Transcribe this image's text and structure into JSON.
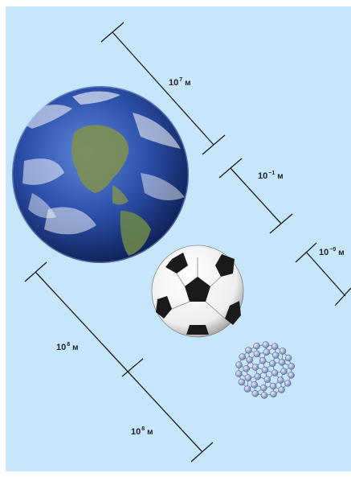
{
  "scale_labels": [
    {
      "base": "10",
      "exp": "7",
      "unit": "м"
    },
    {
      "base": "10",
      "exp": "−1",
      "unit": "м"
    },
    {
      "base": "10",
      "exp": "−9",
      "unit": "м"
    },
    {
      "base": "10",
      "exp": "8",
      "unit": "м"
    },
    {
      "base": "10",
      "exp": "8",
      "unit": "м"
    }
  ],
  "objects": [
    "earth",
    "soccer-ball",
    "fullerene-molecule"
  ],
  "colors": {
    "background": "#c6e6fb",
    "ocean": "#2b4fa8",
    "land": "#6f8a4a",
    "line": "#1a1a1a"
  }
}
